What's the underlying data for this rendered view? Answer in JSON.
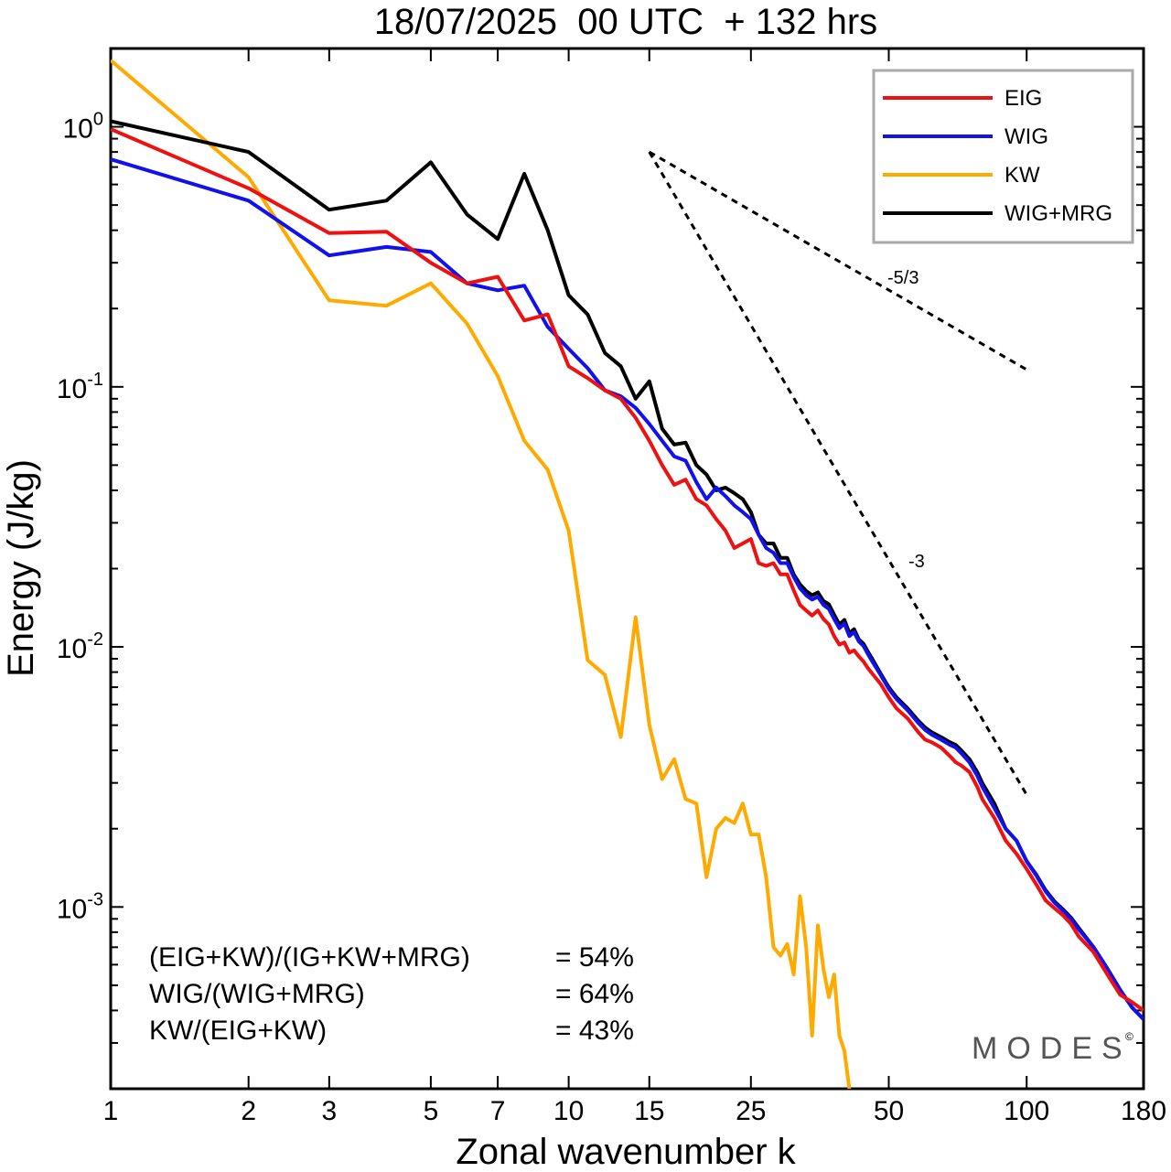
{
  "chart_data": {
    "type": "line",
    "title": "18/07/2025  00 UTC  + 132 hrs",
    "xlabel": "Zonal wavenumber k",
    "ylabel": "Energy (J/kg)",
    "x_scale": "log",
    "y_scale": "log",
    "xlim": [
      1,
      180
    ],
    "ylim": [
      0.0002,
      2
    ],
    "x_ticks": [
      {
        "value": 1,
        "label": "1"
      },
      {
        "value": 2,
        "label": "2"
      },
      {
        "value": 3,
        "label": "3"
      },
      {
        "value": 5,
        "label": "5"
      },
      {
        "value": 7,
        "label": "7"
      },
      {
        "value": 10,
        "label": "10"
      },
      {
        "value": 15,
        "label": "15"
      },
      {
        "value": 25,
        "label": "25"
      },
      {
        "value": 50,
        "label": "50"
      },
      {
        "value": 100,
        "label": "100"
      },
      {
        "value": 180,
        "label": "180"
      }
    ],
    "y_ticks": [
      {
        "value": 1,
        "base": "10",
        "exp": "0"
      },
      {
        "value": 0.1,
        "base": "10",
        "exp": "-1"
      },
      {
        "value": 0.01,
        "base": "10",
        "exp": "-2"
      },
      {
        "value": 0.001,
        "base": "10",
        "exp": "-3"
      }
    ],
    "legend_position": "top-right",
    "series": [
      {
        "name": "EIG",
        "color": "#ee1111",
        "points": [
          [
            1,
            0.98
          ],
          [
            2,
            0.58
          ],
          [
            3,
            0.39
          ],
          [
            4,
            0.395
          ],
          [
            5,
            0.3
          ],
          [
            6,
            0.25
          ],
          [
            7,
            0.265
          ],
          [
            8,
            0.18
          ],
          [
            9,
            0.19
          ],
          [
            10,
            0.12
          ],
          [
            11,
            0.108
          ],
          [
            12,
            0.097
          ],
          [
            13,
            0.09
          ],
          [
            14,
            0.076
          ],
          [
            15,
            0.062
          ],
          [
            16,
            0.05
          ],
          [
            17,
            0.042
          ],
          [
            18,
            0.044
          ],
          [
            19,
            0.037
          ],
          [
            20,
            0.035
          ],
          [
            21,
            0.031
          ],
          [
            22,
            0.028
          ],
          [
            23,
            0.024
          ],
          [
            24,
            0.025
          ],
          [
            25,
            0.026
          ],
          [
            26,
            0.021
          ],
          [
            27,
            0.0205
          ],
          [
            28,
            0.021
          ],
          [
            29,
            0.019
          ],
          [
            30,
            0.019
          ],
          [
            31,
            0.0165
          ],
          [
            32,
            0.0145
          ],
          [
            33,
            0.0138
          ],
          [
            34,
            0.0132
          ],
          [
            35,
            0.0138
          ],
          [
            36,
            0.0128
          ],
          [
            37,
            0.0122
          ],
          [
            38,
            0.011
          ],
          [
            39,
            0.0102
          ],
          [
            40,
            0.0104
          ],
          [
            41,
            0.0095
          ],
          [
            42,
            0.0097
          ],
          [
            43,
            0.0092
          ],
          [
            44,
            0.0088
          ],
          [
            45,
            0.0083
          ],
          [
            46,
            0.0079
          ],
          [
            48,
            0.0072
          ],
          [
            50,
            0.0064
          ],
          [
            52,
            0.0058
          ],
          [
            55,
            0.0053
          ],
          [
            58,
            0.0047
          ],
          [
            60,
            0.0044
          ],
          [
            62,
            0.0043
          ],
          [
            65,
            0.0041
          ],
          [
            68,
            0.0038
          ],
          [
            70,
            0.0036
          ],
          [
            72,
            0.0035
          ],
          [
            75,
            0.0033
          ],
          [
            78,
            0.0029
          ],
          [
            80,
            0.0026
          ],
          [
            85,
            0.0022
          ],
          [
            90,
            0.0018
          ],
          [
            95,
            0.0016
          ],
          [
            100,
            0.0014
          ],
          [
            105,
            0.00122
          ],
          [
            110,
            0.00106
          ],
          [
            115,
            0.00099
          ],
          [
            120,
            0.00093
          ],
          [
            125,
            0.00086
          ],
          [
            130,
            0.00077
          ],
          [
            140,
            0.00067
          ],
          [
            150,
            0.00055
          ],
          [
            160,
            0.00046
          ],
          [
            170,
            0.00043
          ],
          [
            180,
            0.0004
          ]
        ]
      },
      {
        "name": "WIG",
        "color": "#1111ee",
        "points": [
          [
            1,
            0.75
          ],
          [
            2,
            0.52
          ],
          [
            3,
            0.32
          ],
          [
            4,
            0.345
          ],
          [
            5,
            0.33
          ],
          [
            6,
            0.25
          ],
          [
            7,
            0.235
          ],
          [
            8,
            0.245
          ],
          [
            9,
            0.17
          ],
          [
            10,
            0.14
          ],
          [
            11,
            0.118
          ],
          [
            12,
            0.097
          ],
          [
            13,
            0.092
          ],
          [
            14,
            0.083
          ],
          [
            15,
            0.072
          ],
          [
            16,
            0.062
          ],
          [
            17,
            0.054
          ],
          [
            18,
            0.052
          ],
          [
            19,
            0.043
          ],
          [
            20,
            0.037
          ],
          [
            21,
            0.041
          ],
          [
            22,
            0.038
          ],
          [
            23,
            0.035
          ],
          [
            24,
            0.033
          ],
          [
            25,
            0.031
          ],
          [
            26,
            0.027
          ],
          [
            27,
            0.024
          ],
          [
            28,
            0.023
          ],
          [
            29,
            0.021
          ],
          [
            30,
            0.021
          ],
          [
            31,
            0.0186
          ],
          [
            32,
            0.0168
          ],
          [
            33,
            0.0158
          ],
          [
            34,
            0.0152
          ],
          [
            35,
            0.0156
          ],
          [
            36,
            0.0145
          ],
          [
            37,
            0.014
          ],
          [
            38,
            0.0128
          ],
          [
            39,
            0.0118
          ],
          [
            40,
            0.0123
          ],
          [
            41,
            0.011
          ],
          [
            42,
            0.0114
          ],
          [
            43,
            0.0105
          ],
          [
            44,
            0.0101
          ],
          [
            45,
            0.0094
          ],
          [
            46,
            0.0088
          ],
          [
            48,
            0.0078
          ],
          [
            50,
            0.0069
          ],
          [
            52,
            0.0063
          ],
          [
            55,
            0.0057
          ],
          [
            58,
            0.0051
          ],
          [
            60,
            0.0048
          ],
          [
            62,
            0.0046
          ],
          [
            65,
            0.0044
          ],
          [
            68,
            0.0042
          ],
          [
            70,
            0.0041
          ],
          [
            72,
            0.0039
          ],
          [
            75,
            0.0036
          ],
          [
            78,
            0.0032
          ],
          [
            80,
            0.0029
          ],
          [
            85,
            0.0024
          ],
          [
            90,
            0.002
          ],
          [
            95,
            0.0018
          ],
          [
            100,
            0.0015
          ],
          [
            105,
            0.00132
          ],
          [
            110,
            0.00115
          ],
          [
            115,
            0.00104
          ],
          [
            120,
            0.00097
          ],
          [
            125,
            0.0009
          ],
          [
            130,
            0.00082
          ],
          [
            140,
            0.0007
          ],
          [
            150,
            0.00058
          ],
          [
            160,
            0.00048
          ],
          [
            170,
            0.00041
          ],
          [
            180,
            0.00037
          ]
        ]
      },
      {
        "name": "KW",
        "color": "#ffaa00",
        "points": [
          [
            1,
            1.8
          ],
          [
            2,
            0.64
          ],
          [
            3,
            0.215
          ],
          [
            4,
            0.205
          ],
          [
            5,
            0.25
          ],
          [
            6,
            0.175
          ],
          [
            7,
            0.11
          ],
          [
            8,
            0.062
          ],
          [
            9,
            0.048
          ],
          [
            10,
            0.028
          ],
          [
            11,
            0.0089
          ],
          [
            12,
            0.0078
          ],
          [
            13,
            0.0045
          ],
          [
            14,
            0.013
          ],
          [
            15,
            0.005
          ],
          [
            16,
            0.0031
          ],
          [
            17,
            0.0037
          ],
          [
            18,
            0.0026
          ],
          [
            19,
            0.0025
          ],
          [
            20,
            0.0013
          ],
          [
            21,
            0.002
          ],
          [
            22,
            0.0022
          ],
          [
            23,
            0.0021
          ],
          [
            24,
            0.0025
          ],
          [
            25,
            0.0019
          ],
          [
            26,
            0.0019
          ],
          [
            27,
            0.0013
          ],
          [
            28,
            0.0007
          ],
          [
            29,
            0.00065
          ],
          [
            30,
            0.00072
          ],
          [
            31,
            0.00055
          ],
          [
            32,
            0.0011
          ],
          [
            33,
            0.0007
          ],
          [
            34,
            0.00032
          ],
          [
            35,
            0.00085
          ],
          [
            36,
            0.00058
          ],
          [
            37,
            0.00045
          ],
          [
            38,
            0.00055
          ],
          [
            39,
            0.00032
          ],
          [
            40,
            0.00028
          ],
          [
            41,
            0.0002
          ]
        ]
      },
      {
        "name": "WIG+MRG",
        "color": "#000000",
        "points": [
          [
            1,
            1.05
          ],
          [
            2,
            0.8
          ],
          [
            3,
            0.48
          ],
          [
            4,
            0.52
          ],
          [
            5,
            0.73
          ],
          [
            6,
            0.46
          ],
          [
            7,
            0.37
          ],
          [
            8,
            0.66
          ],
          [
            9,
            0.4
          ],
          [
            10,
            0.225
          ],
          [
            11,
            0.19
          ],
          [
            12,
            0.135
          ],
          [
            13,
            0.12
          ],
          [
            14,
            0.09
          ],
          [
            15,
            0.105
          ],
          [
            16,
            0.069
          ],
          [
            17,
            0.06
          ],
          [
            18,
            0.061
          ],
          [
            19,
            0.05
          ],
          [
            20,
            0.046
          ],
          [
            21,
            0.04
          ],
          [
            22,
            0.041
          ],
          [
            23,
            0.039
          ],
          [
            24,
            0.037
          ],
          [
            25,
            0.033
          ],
          [
            26,
            0.027
          ],
          [
            27,
            0.025
          ],
          [
            28,
            0.025
          ],
          [
            29,
            0.022
          ],
          [
            30,
            0.022
          ],
          [
            31,
            0.019
          ],
          [
            32,
            0.0174
          ],
          [
            33,
            0.0164
          ],
          [
            34,
            0.0158
          ],
          [
            35,
            0.0162
          ],
          [
            36,
            0.015
          ],
          [
            37,
            0.0146
          ],
          [
            38,
            0.0133
          ],
          [
            39,
            0.0122
          ],
          [
            40,
            0.0127
          ],
          [
            41,
            0.0113
          ],
          [
            42,
            0.0117
          ],
          [
            43,
            0.0107
          ],
          [
            44,
            0.0103
          ],
          [
            45,
            0.0096
          ],
          [
            46,
            0.009
          ],
          [
            48,
            0.0079
          ],
          [
            50,
            0.007
          ],
          [
            52,
            0.0064
          ],
          [
            55,
            0.0058
          ],
          [
            58,
            0.0052
          ],
          [
            60,
            0.0049
          ],
          [
            62,
            0.0047
          ],
          [
            65,
            0.0045
          ],
          [
            68,
            0.0043
          ],
          [
            70,
            0.0042
          ],
          [
            72,
            0.004
          ],
          [
            75,
            0.0037
          ],
          [
            78,
            0.0033
          ],
          [
            80,
            0.003
          ],
          [
            85,
            0.0025
          ],
          [
            90,
            0.002
          ],
          [
            95,
            0.0018
          ],
          [
            100,
            0.0015
          ],
          [
            105,
            0.00133
          ],
          [
            110,
            0.00116
          ],
          [
            115,
            0.00105
          ],
          [
            120,
            0.00098
          ],
          [
            125,
            0.00091
          ],
          [
            130,
            0.00083
          ],
          [
            140,
            0.0007
          ],
          [
            150,
            0.00058
          ],
          [
            160,
            0.00048
          ],
          [
            170,
            0.00041
          ],
          [
            180,
            0.00037
          ]
        ]
      }
    ],
    "reference_lines": [
      {
        "label": "-5/3",
        "slope": -1.6667,
        "from": [
          15,
          0.8
        ],
        "to": [
          100,
          0.1165
        ]
      },
      {
        "label": "-3",
        "slope": -3,
        "from": [
          15,
          0.8
        ],
        "to": [
          100,
          0.0027
        ]
      }
    ],
    "statistics": [
      {
        "label": "(EIG+KW)/(IG+KW+MRG)",
        "value": "= 54%"
      },
      {
        "label": "WIG/(WIG+MRG)",
        "value": "= 64%"
      },
      {
        "label": "KW/(EIG+KW)",
        "value": "= 43%"
      }
    ],
    "watermark": "MODES"
  }
}
